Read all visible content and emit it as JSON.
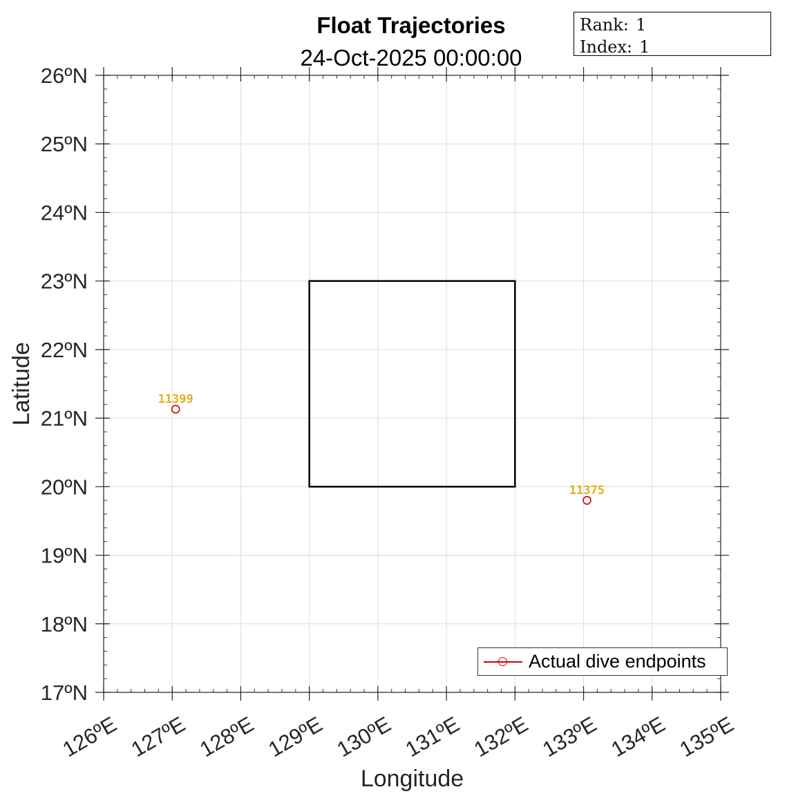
{
  "figure": {
    "title": "Float Trajectories",
    "subtitle": "24-Oct-2025 00:00:00"
  },
  "info_box": {
    "rank_label": "Rank:",
    "rank_value": "1",
    "index_label": "Index:",
    "index_value": "1"
  },
  "legend": {
    "label": "Actual dive endpoints",
    "color": "#cc0000"
  },
  "chart_data": {
    "type": "scatter",
    "xlabel": "Longitude",
    "ylabel": "Latitude",
    "xlim": [
      126,
      135
    ],
    "ylim": [
      17,
      26
    ],
    "xticks": [
      126,
      127,
      128,
      129,
      130,
      131,
      132,
      133,
      134,
      135
    ],
    "yticks": [
      17,
      18,
      19,
      20,
      21,
      22,
      23,
      24,
      25,
      26
    ],
    "xtick_labels": [
      "126ºE",
      "127ºE",
      "128ºE",
      "129ºE",
      "130ºE",
      "131ºE",
      "132ºE",
      "133ºE",
      "134ºE",
      "135ºE"
    ],
    "ytick_labels": [
      "17ºN",
      "18ºN",
      "19ºN",
      "20ºN",
      "21ºN",
      "22ºN",
      "23ºN",
      "24ºN",
      "25ºN",
      "26ºN"
    ],
    "grid": true,
    "legend_position": "bottom-right",
    "region_box": {
      "lon_min": 129,
      "lon_max": 132,
      "lat_min": 20,
      "lat_max": 23
    },
    "series": [
      {
        "name": "Actual dive endpoints",
        "color": "#cc0000",
        "marker": "circle",
        "points": [
          {
            "id": "11399",
            "lon": 127.05,
            "lat": 21.13
          },
          {
            "id": "11375",
            "lon": 133.05,
            "lat": 19.8
          }
        ]
      }
    ],
    "point_label_color": "#e0b020"
  }
}
